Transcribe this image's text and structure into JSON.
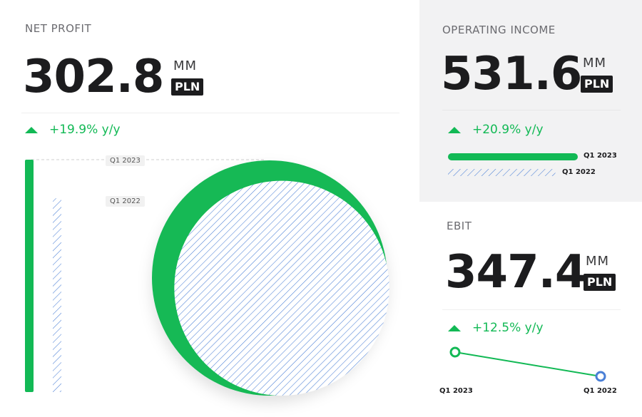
{
  "net_profit": {
    "title": "NET PROFIT",
    "value": "302.8",
    "unit": "MM",
    "currency": "PLN",
    "change": "+19.9% y/y",
    "tag_current": "Q1 2023",
    "tag_previous": "Q1 2022"
  },
  "operating_income": {
    "title": "OPERATING INCOME",
    "value": "531.6",
    "unit": "MM",
    "currency": "PLN",
    "change": "+20.9% y/y",
    "label_current": "Q1 2023",
    "label_previous": "Q1 2022"
  },
  "ebit": {
    "title": "EBIT",
    "value": "347.4",
    "unit": "MM",
    "currency": "PLN",
    "change": "+12.5% y/y",
    "label_current": "Q1 2023",
    "label_previous": "Q1 2022"
  },
  "colors": {
    "green": "#12b955",
    "hatch_blue": "#4a7fd6",
    "dark": "#1c1c1e",
    "panel_gray": "#f2f2f3"
  },
  "chart_data": [
    {
      "type": "bar",
      "categories": [
        "Q1 2023",
        "Q1 2022"
      ],
      "values": [
        302.8,
        252.5
      ]
    },
    {
      "type": "bar",
      "categories": [
        "Q1 2023",
        "Q1 2022"
      ],
      "values": [
        531.6,
        439.7
      ]
    },
    {
      "type": "line",
      "x": [
        "Q1 2023",
        "Q1 2022"
      ],
      "values": [
        347.4,
        308.8
      ]
    }
  ]
}
